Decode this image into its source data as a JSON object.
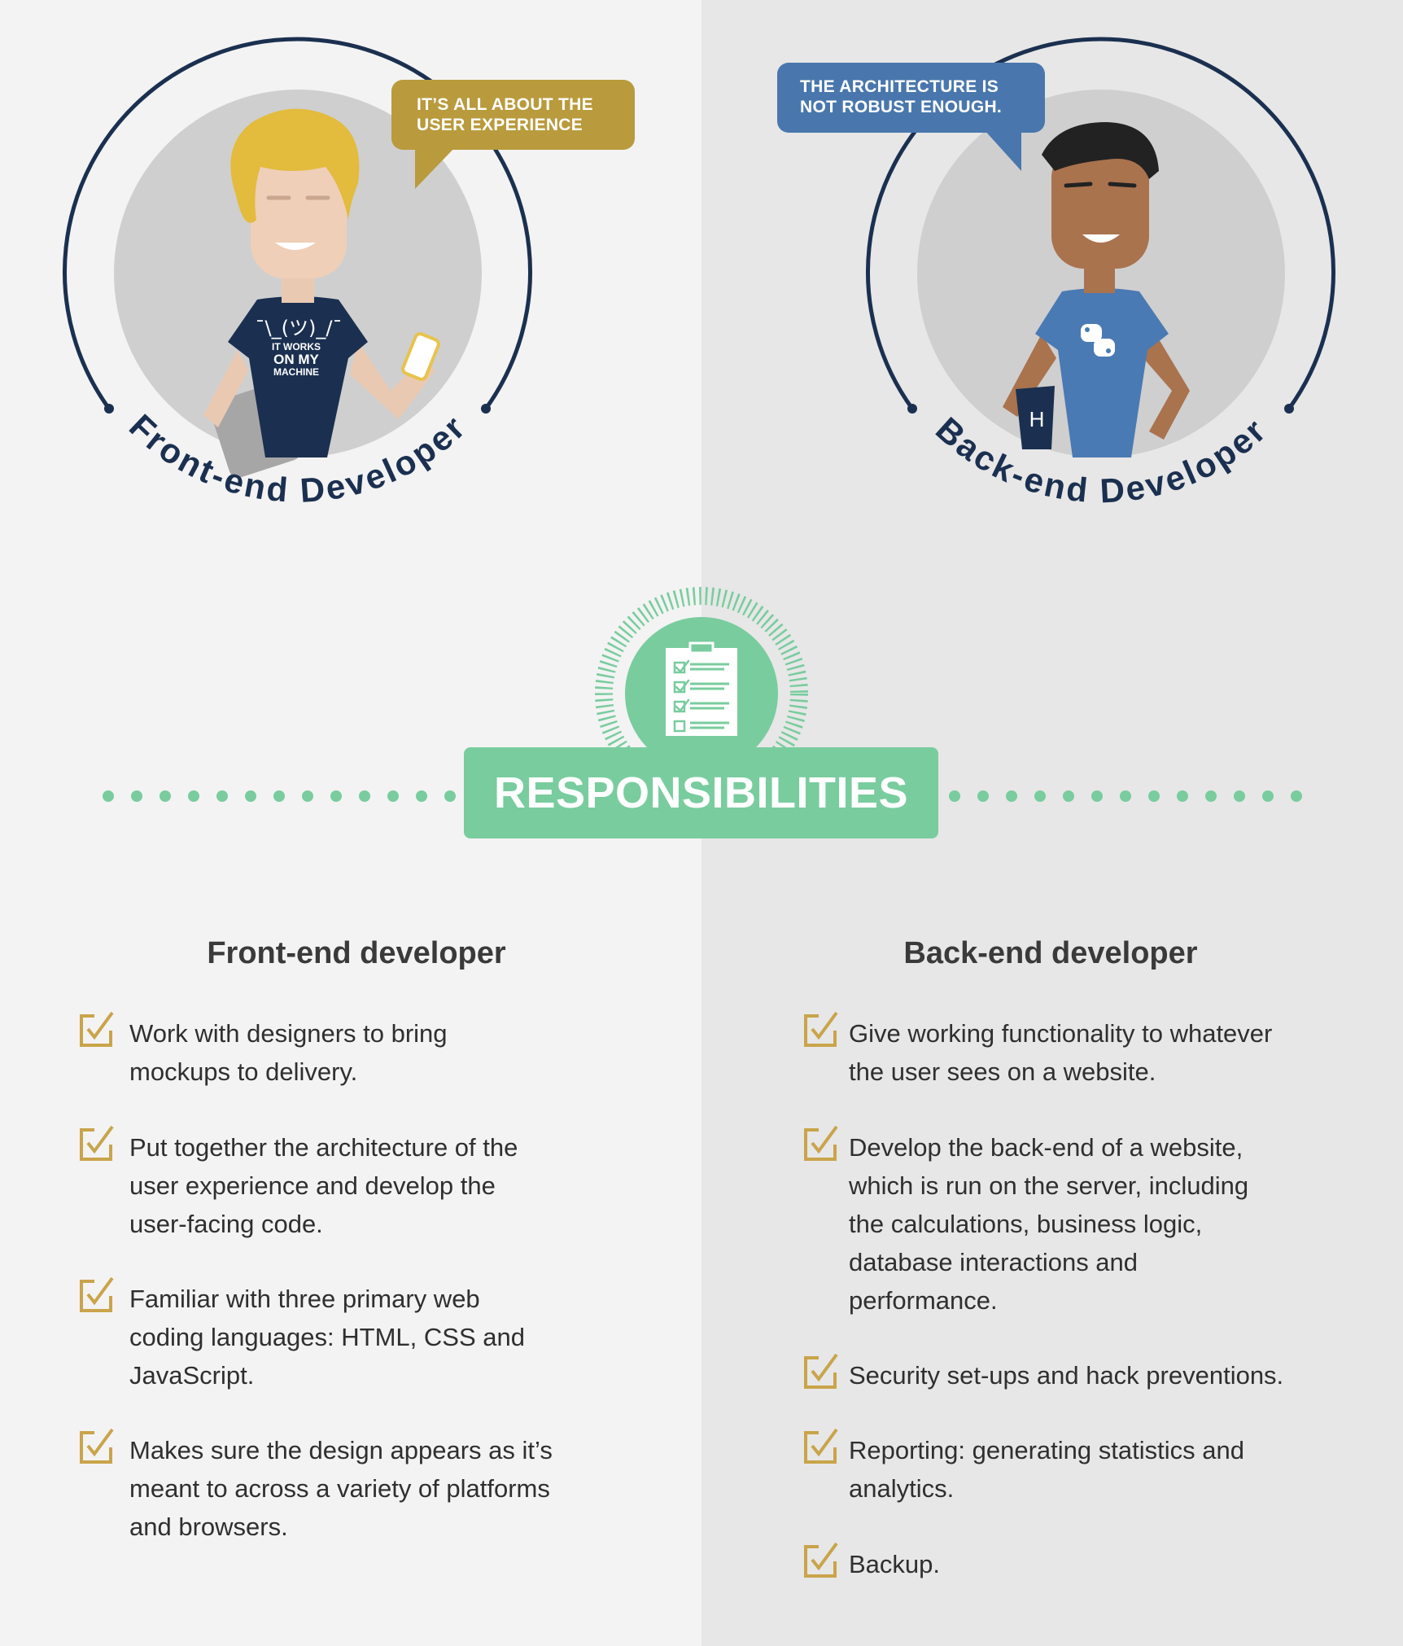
{
  "front": {
    "bubble_line1": "IT’S ALL ABOUT THE",
    "bubble_line2": "USER EXPERIENCE",
    "arc_label": "Front-end Developer",
    "shirt_shrug": "¯\\_(ツ)_/¯",
    "shirt_line1": "IT WORKS",
    "shirt_line2": "ON MY",
    "shirt_line3": "MACHINE",
    "column_title": "Front-end developer",
    "items": [
      [
        "Work with designers to bring",
        "mockups to delivery."
      ],
      [
        "Put together the architecture of the",
        "user experience and develop the",
        "user-facing code."
      ],
      [
        "Familiar with three primary web",
        "coding languages: HTML, CSS and",
        "JavaScript."
      ],
      [
        "Makes sure the design appears as it’s",
        "meant to across a variety of platforms",
        "and browsers."
      ]
    ]
  },
  "back": {
    "bubble_line1": "THE ARCHITECTURE IS",
    "bubble_line2": "NOT ROBUST ENOUGH.",
    "arc_label": "Back-end Developer",
    "mug_letter": "H",
    "column_title": "Back-end developer",
    "items": [
      [
        "Give working functionality to whatever",
        "the user sees on a website."
      ],
      [
        "Develop the back-end of a website,",
        "which is run on the server, including",
        "the calculations, business logic,",
        "database interactions and",
        "performance."
      ],
      [
        "Security set-ups and hack preventions."
      ],
      [
        "Reporting: generating statistics and",
        "analytics."
      ],
      [
        "Backup."
      ]
    ]
  },
  "banner": {
    "label": "RESPONSIBILITIES"
  },
  "colors": {
    "navy": "#1b3050",
    "gold": "#b99a3c",
    "blue": "#4977ad",
    "green": "#79cc9e",
    "check": "#c9a44a"
  }
}
